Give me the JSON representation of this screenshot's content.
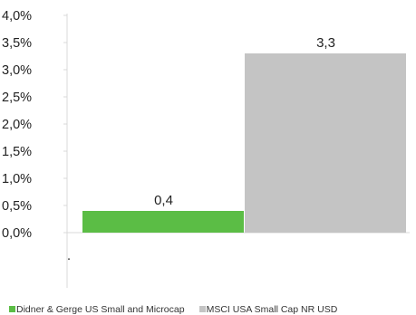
{
  "chart_data": {
    "type": "bar",
    "categories": [
      "Didner & Gerge US Small and Microcap",
      "MSCI USA Small Cap NR USD"
    ],
    "values": [
      0.4,
      3.3
    ],
    "data_labels": [
      "0,4",
      "3,3"
    ],
    "colors": [
      "#5bbd45",
      "#c4c4c4"
    ],
    "ylim": [
      0,
      4
    ],
    "yticks": [
      "0,0%",
      "0,5%",
      "1,0%",
      "1,5%",
      "2,0%",
      "2,5%",
      "3,0%",
      "3,5%",
      "4,0%"
    ],
    "legend_position": "bottom-left",
    "grid": false,
    "footnote": "."
  }
}
